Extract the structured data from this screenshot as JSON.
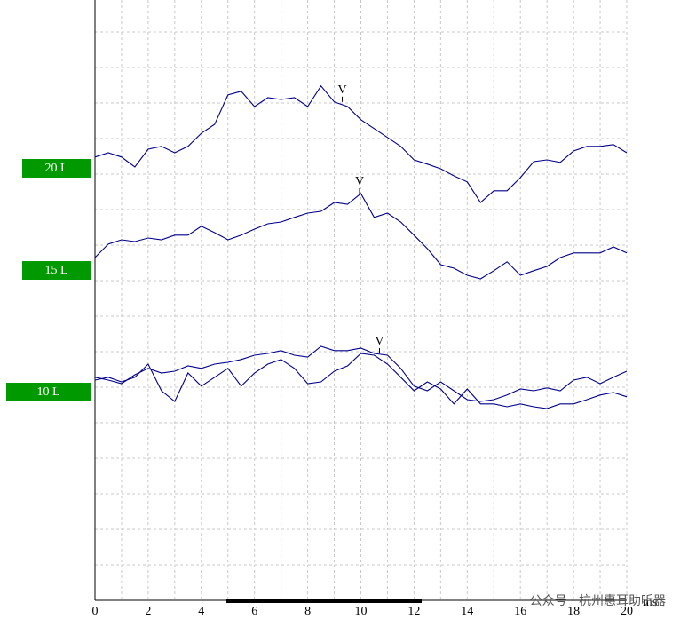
{
  "chart_data": {
    "type": "line",
    "x": [
      0,
      0.5,
      1,
      1.5,
      2,
      2.5,
      3,
      3.5,
      4,
      4.5,
      5,
      5.5,
      6,
      6.5,
      7,
      7.5,
      8,
      8.5,
      9,
      9.5,
      10,
      10.5,
      11,
      11.5,
      12,
      12.5,
      13,
      13.5,
      14,
      14.5,
      15,
      15.5,
      16,
      16.5,
      17,
      17.5,
      18,
      18.5,
      19,
      19.5,
      20
    ],
    "xlim": [
      0,
      20
    ],
    "xticks": [
      0,
      2,
      4,
      6,
      8,
      10,
      12,
      14,
      16,
      18,
      20
    ],
    "minor_xgrid": [
      1,
      3,
      5,
      7,
      9,
      11,
      13,
      15,
      17,
      19
    ],
    "x_unit": "ms",
    "ylim": [
      0,
      17
    ],
    "yticks": [
      1,
      2,
      3,
      4,
      5,
      6,
      7,
      8,
      9,
      10,
      11,
      12,
      13,
      14,
      15,
      16
    ],
    "grid": true,
    "series": [
      {
        "name": "20 L",
        "color": "#00008b",
        "values": [
          12.48,
          12.6,
          12.48,
          12.2,
          12.7,
          12.78,
          12.6,
          12.78,
          13.15,
          13.4,
          14.23,
          14.33,
          13.9,
          14.15,
          14.1,
          14.15,
          13.9,
          14.48,
          14.03,
          13.9,
          13.53,
          13.28,
          13.03,
          12.78,
          12.4,
          12.28,
          12.15,
          11.95,
          11.78,
          11.2,
          11.53,
          11.53,
          11.9,
          12.35,
          12.4,
          12.33,
          12.65,
          12.78,
          12.78,
          12.83,
          12.6
        ]
      },
      {
        "name": "15 L",
        "color": "#00008b",
        "values": [
          9.65,
          10.03,
          10.15,
          10.1,
          10.2,
          10.15,
          10.28,
          10.28,
          10.53,
          10.35,
          10.15,
          10.28,
          10.45,
          10.6,
          10.65,
          10.78,
          10.9,
          10.95,
          11.2,
          11.15,
          11.45,
          10.78,
          10.9,
          10.65,
          10.28,
          9.9,
          9.45,
          9.35,
          9.15,
          9.05,
          9.28,
          9.53,
          9.15,
          9.28,
          9.4,
          9.65,
          9.78,
          9.78,
          9.78,
          9.95,
          9.78
        ]
      },
      {
        "name": "10 L",
        "color": "#00008b",
        "values": [
          6.28,
          6.2,
          6.1,
          6.35,
          6.53,
          6.4,
          6.45,
          6.6,
          6.53,
          6.65,
          6.7,
          6.78,
          6.9,
          6.95,
          7.03,
          6.9,
          6.85,
          7.15,
          7.03,
          7.03,
          7.1,
          6.95,
          6.9,
          6.53,
          6.03,
          5.9,
          6.15,
          5.9,
          5.65,
          5.6,
          5.65,
          5.78,
          5.95,
          5.9,
          5.98,
          5.9,
          6.2,
          6.28,
          6.1,
          6.28,
          6.45
        ]
      },
      {
        "color": "#00008b",
        "values": [
          6.2,
          6.28,
          6.15,
          6.28,
          6.65,
          5.9,
          5.6,
          6.4,
          6.03,
          6.28,
          6.53,
          6.03,
          6.4,
          6.65,
          6.78,
          6.53,
          6.1,
          6.15,
          6.45,
          6.6,
          6.95,
          6.9,
          6.65,
          6.28,
          5.9,
          6.15,
          5.95,
          5.53,
          5.95,
          5.53,
          5.53,
          5.45,
          5.53,
          5.45,
          5.4,
          5.53,
          5.53,
          5.65,
          5.78,
          5.85,
          5.73
        ]
      }
    ],
    "label_color": "#009900",
    "annotations": [
      {
        "text": "V",
        "x": 9.3,
        "y": 14.03
      },
      {
        "text": "V",
        "x": 9.95,
        "y": 11.45
      },
      {
        "text": "V",
        "x": 10.7,
        "y": 6.95
      }
    ],
    "watermark": "公众号 · 杭州惠耳助听器"
  }
}
